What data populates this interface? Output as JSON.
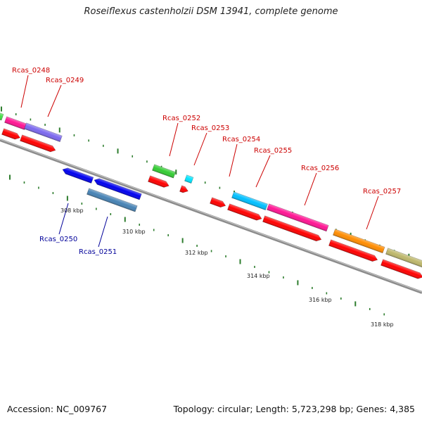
{
  "header": {
    "title": "Roseiflexus castenholzii DSM 13941, complete genome"
  },
  "footer": {
    "accession": "Accession: NC_009767",
    "summary": "Topology: circular; Length: 5,723,298 bp; Genes: 4,385"
  },
  "colors": {
    "forward_label": "#cc0000",
    "reverse_label": "#000099",
    "backbone": "#8c8c8c",
    "tick": "#2e7d2e",
    "cds_red": "#ff0000",
    "magenta": "#ff1493",
    "purple": "#7b68ee",
    "green": "#33cc33",
    "cyan": "#00e5ff",
    "skyblue": "#00bfff",
    "orange": "#ff8c00",
    "khaki": "#bdb76b",
    "blue": "#0000ee",
    "steelblue": "#4682b4",
    "lime": "#44dd44"
  },
  "scale": [
    {
      "label": "308 kbp"
    },
    {
      "label": "310 kbp"
    },
    {
      "label": "312 kbp"
    },
    {
      "label": "314 kbp"
    },
    {
      "label": "316 kbp"
    },
    {
      "label": "318 kbp"
    }
  ],
  "gene_labels": [
    {
      "text": "Rcas_0248",
      "strand": "forward"
    },
    {
      "text": "Rcas_0249",
      "strand": "forward"
    },
    {
      "text": "Rcas_0252",
      "strand": "forward"
    },
    {
      "text": "Rcas_0253",
      "strand": "forward"
    },
    {
      "text": "Rcas_0254",
      "strand": "forward"
    },
    {
      "text": "Rcas_0255",
      "strand": "forward"
    },
    {
      "text": "Rcas_0256",
      "strand": "forward"
    },
    {
      "text": "Rcas_0257",
      "strand": "forward"
    },
    {
      "text": "Rcas_0250",
      "strand": "reverse"
    },
    {
      "text": "Rcas_0251",
      "strand": "reverse"
    }
  ]
}
